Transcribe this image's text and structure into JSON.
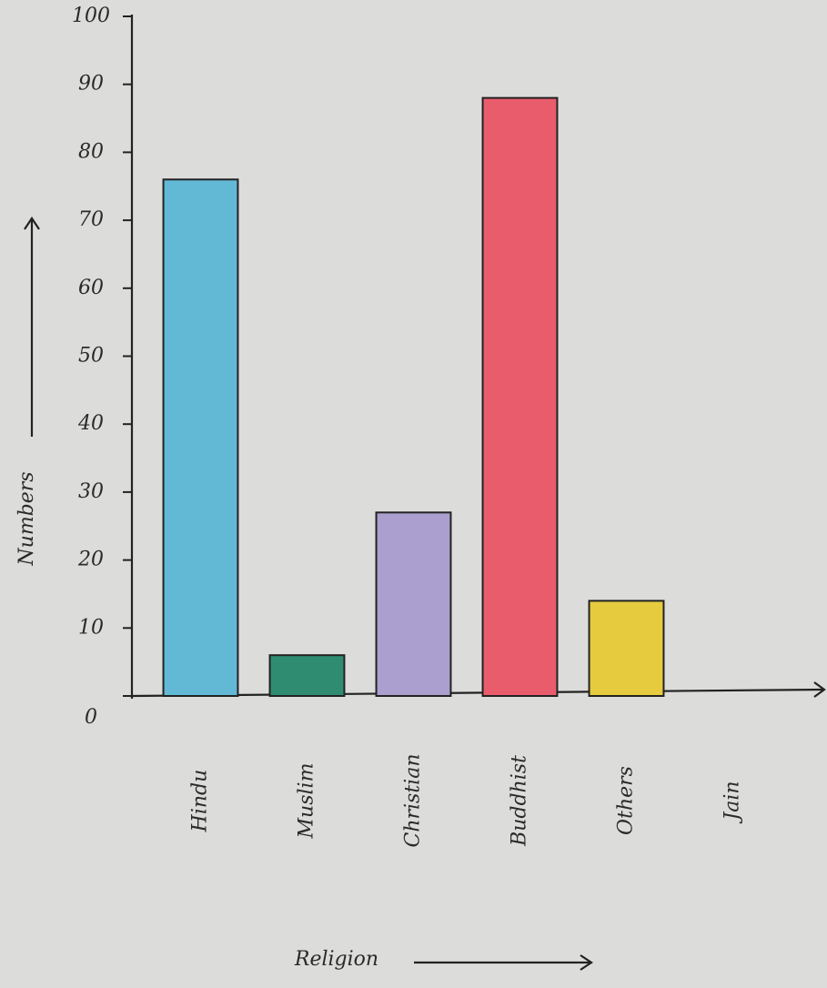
{
  "chart_data": {
    "type": "bar",
    "x_label": "Religion",
    "y_label": "Numbers",
    "categories": [
      "Hindu",
      "Muslim",
      "Christian",
      "Buddhist",
      "Others",
      "Jain"
    ],
    "values": [
      76,
      6,
      27,
      88,
      14,
      0
    ],
    "colors": [
      "#62b9d6",
      "#2f8c70",
      "#ab9fcf",
      "#e95c6c",
      "#e6cb3e",
      null
    ],
    "ylim": [
      0,
      100
    ],
    "yticks": [
      0,
      10,
      20,
      30,
      40,
      50,
      60,
      70,
      80,
      90,
      100
    ],
    "grid": false
  }
}
